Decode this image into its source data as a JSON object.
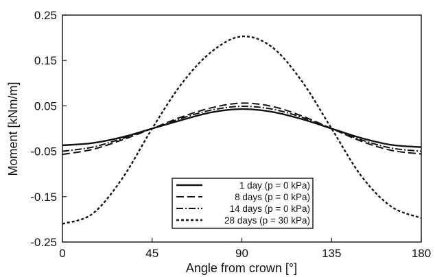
{
  "chart_data": {
    "type": "line",
    "title": "",
    "xlabel": "Angle from crown [°]",
    "ylabel": "Moment [kNm/m]",
    "xlim": [
      0,
      180
    ],
    "ylim": [
      -0.25,
      0.25
    ],
    "xticks": [
      0,
      45,
      90,
      135,
      180
    ],
    "xtick_labels": [
      "0",
      "45",
      "90",
      "135",
      "180"
    ],
    "yticks": [
      0.25,
      0.15,
      0.05,
      -0.05,
      -0.15,
      -0.25
    ],
    "ytick_labels": [
      "0.25",
      "0.15",
      "0.05",
      "-0.05",
      "-0.15",
      "-0.25"
    ],
    "grid": false,
    "legend_position": "bottom-center",
    "x": [
      0,
      15,
      30,
      45,
      60,
      75,
      90,
      105,
      120,
      135,
      150,
      165,
      180
    ],
    "series": [
      {
        "name": "1 day   (p = 0 kPa)",
        "line_style": "solid",
        "values": [
          -0.037,
          -0.032,
          -0.019,
          0.0,
          0.019,
          0.036,
          0.043,
          0.037,
          0.021,
          0.0,
          -0.021,
          -0.036,
          -0.041
        ]
      },
      {
        "name": "8 days (p = 0 kPa)",
        "line_style": "dashed",
        "values": [
          -0.057,
          -0.046,
          -0.025,
          0.0,
          0.026,
          0.046,
          0.056,
          0.049,
          0.028,
          0.0,
          -0.028,
          -0.048,
          -0.056
        ]
      },
      {
        "name": "14 days (p = 0 kPa)",
        "line_style": "dashdot",
        "values": [
          -0.05,
          -0.041,
          -0.022,
          0.0,
          0.023,
          0.041,
          0.049,
          0.043,
          0.025,
          0.0,
          -0.025,
          -0.043,
          -0.05
        ]
      },
      {
        "name": "28 days (p = 30 kPa)",
        "line_style": "dotted",
        "values": [
          -0.21,
          -0.188,
          -0.11,
          0.0,
          0.1,
          0.17,
          0.203,
          0.18,
          0.105,
          0.0,
          -0.105,
          -0.172,
          -0.197
        ]
      }
    ]
  }
}
